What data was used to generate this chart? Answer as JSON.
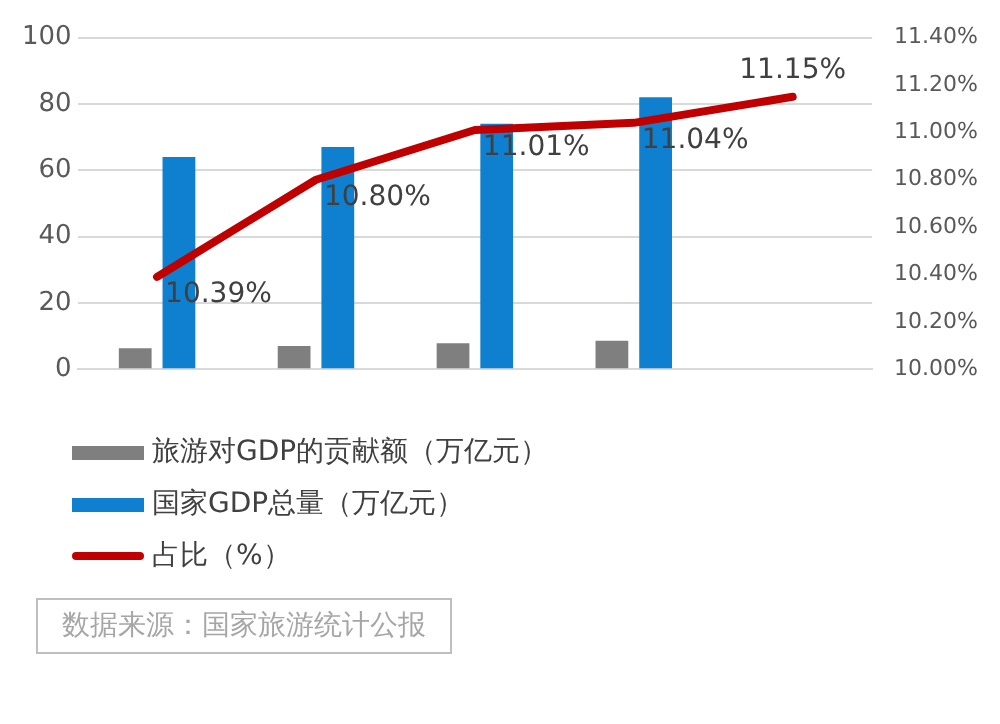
{
  "chart_data": {
    "type": "bar",
    "categories": [
      null,
      null,
      null,
      null,
      null
    ],
    "series": [
      {
        "name": "旅游对GDP的贡献额（万亿元）",
        "color": "#7f7f7f",
        "values": [
          6.3,
          7.0,
          7.8,
          8.6,
          null
        ]
      },
      {
        "name": "国家GDP总量（万亿元）",
        "color": "#0f7fcf",
        "values": [
          64,
          67,
          74,
          82,
          null
        ]
      },
      {
        "name": "占比（%）",
        "type": "line",
        "axis": "y2",
        "color": "#c00000",
        "values": [
          10.39,
          10.8,
          11.01,
          11.04,
          11.15
        ],
        "value_labels": [
          "10.39%",
          "10.80%",
          "11.01%",
          "11.04%",
          "11.15%"
        ]
      }
    ],
    "ylim": [
      0,
      100
    ],
    "yticks": [
      0,
      20,
      40,
      60,
      80,
      100
    ],
    "y2lim": [
      10,
      11.4
    ],
    "y2ticks": [
      {
        "value": 10,
        "label": "10.00%"
      },
      {
        "value": 10.2,
        "label": "10.20%"
      },
      {
        "value": 10.4,
        "label": "10.40%"
      },
      {
        "value": 10.6,
        "label": "10.60%"
      },
      {
        "value": 10.8,
        "label": "10.80%"
      },
      {
        "value": 11,
        "label": "11.00%"
      },
      {
        "value": 11.2,
        "label": "11.20%"
      },
      {
        "value": 11.4,
        "label": "11.40%"
      }
    ],
    "grid": "y",
    "legend": "bottom",
    "marker": "none",
    "line_style": "solid",
    "annotations": [
      "数据来源：国家旅游统计公报"
    ]
  }
}
